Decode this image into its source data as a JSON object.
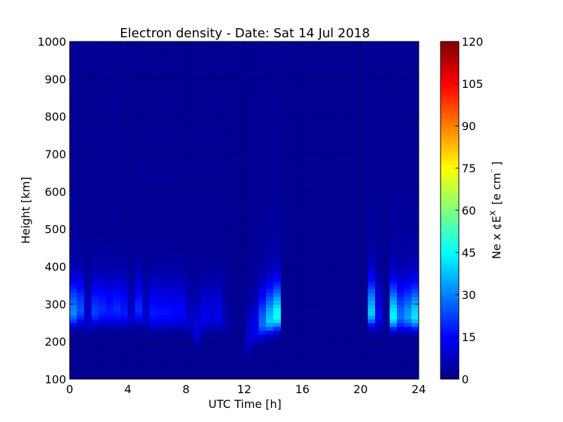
{
  "chart_data": {
    "type": "heatmap",
    "title": "Electron density - Date: Sat 14 Jul 2018",
    "xlabel": "UTC Time [h]",
    "ylabel": "Height [km]",
    "xlim": [
      0,
      24
    ],
    "ylim": [
      100,
      1000
    ],
    "x_ticks": [
      "0",
      "4",
      "8",
      "12",
      "16",
      "20",
      "24"
    ],
    "y_ticks": [
      "100",
      "200",
      "300",
      "400",
      "500",
      "600",
      "700",
      "800",
      "900",
      "1000"
    ],
    "colorbar": {
      "label": "Ne x ¢E",
      "label_exponent": "X",
      "label_units": "[e cm",
      "label_units_exponent": "⁻",
      "label_units_close": "]",
      "range": [
        0,
        120
      ],
      "ticks": [
        "0",
        "15",
        "30",
        "45",
        "60",
        "75",
        "90",
        "105",
        "120"
      ],
      "colormap": "jet"
    },
    "profiles": [
      {
        "t": 0.0,
        "peak_h": 270,
        "peak": 28
      },
      {
        "t": 0.5,
        "peak_h": 275,
        "peak": 22
      },
      {
        "t": 1.0,
        "peak_h": 250,
        "peak": 8
      },
      {
        "t": 1.5,
        "peak_h": 270,
        "peak": 20
      },
      {
        "t": 2.0,
        "peak_h": 275,
        "peak": 18
      },
      {
        "t": 2.5,
        "peak_h": 270,
        "peak": 16
      },
      {
        "t": 3.0,
        "peak_h": 275,
        "peak": 18
      },
      {
        "t": 3.5,
        "peak_h": 270,
        "peak": 16
      },
      {
        "t": 4.0,
        "peak_h": 260,
        "peak": 8
      },
      {
        "t": 4.5,
        "peak_h": 275,
        "peak": 18
      },
      {
        "t": 5.0,
        "peak_h": 260,
        "peak": 8
      },
      {
        "t": 5.5,
        "peak_h": 265,
        "peak": 16
      },
      {
        "t": 6.0,
        "peak_h": 265,
        "peak": 15
      },
      {
        "t": 6.5,
        "peak_h": 265,
        "peak": 15
      },
      {
        "t": 7.0,
        "peak_h": 265,
        "peak": 14
      },
      {
        "t": 7.5,
        "peak_h": 265,
        "peak": 14
      },
      {
        "t": 8.0,
        "peak_h": 250,
        "peak": 8
      },
      {
        "t": 8.5,
        "peak_h": 220,
        "peak": 10
      },
      {
        "t": 9.0,
        "peak_h": 255,
        "peak": 12
      },
      {
        "t": 9.5,
        "peak_h": 260,
        "peak": 10
      },
      {
        "t": 10.0,
        "peak_h": 260,
        "peak": 12
      },
      {
        "t": 10.5,
        "peak_h": 250,
        "peak": 5
      },
      {
        "t": 11.0,
        "peak_h": 230,
        "peak": 2
      },
      {
        "t": 11.5,
        "peak_h": 230,
        "peak": 2
      },
      {
        "t": 12.0,
        "peak_h": 200,
        "peak": 8
      },
      {
        "t": 12.5,
        "peak_h": 220,
        "peak": 12
      },
      {
        "t": 13.0,
        "peak_h": 240,
        "peak": 25
      },
      {
        "t": 13.5,
        "peak_h": 250,
        "peak": 35
      },
      {
        "t": 14.0,
        "peak_h": 260,
        "peak": 42
      },
      {
        "t": 14.5,
        "peak_h": 250,
        "peak": 0
      },
      {
        "t": 20.0,
        "peak_h": 250,
        "peak": 0
      },
      {
        "t": 20.5,
        "peak_h": 270,
        "peak": 35
      },
      {
        "t": 21.0,
        "peak_h": 260,
        "peak": 12
      },
      {
        "t": 21.5,
        "peak_h": 260,
        "peak": 2
      },
      {
        "t": 22.0,
        "peak_h": 260,
        "peak": 40
      },
      {
        "t": 22.5,
        "peak_h": 260,
        "peak": 25
      },
      {
        "t": 23.0,
        "peak_h": 260,
        "peak": 30
      },
      {
        "t": 23.5,
        "peak_h": 260,
        "peak": 38
      }
    ],
    "grid": true,
    "background_value": 2
  }
}
